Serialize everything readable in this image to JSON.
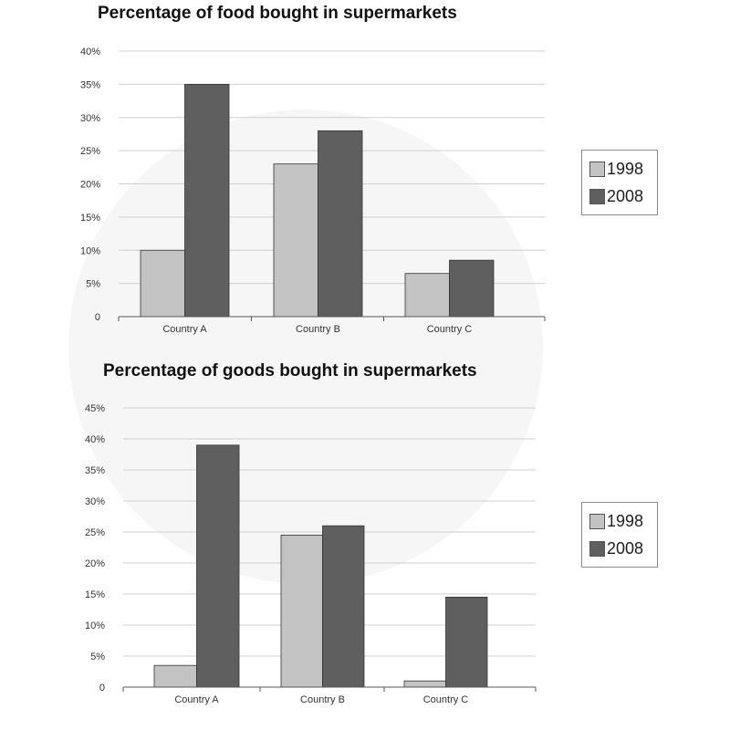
{
  "colors": {
    "series_1998": "#c3c3c3",
    "series_2008": "#5f5f5f",
    "grid": "#cfcfcf",
    "axis": "#555555",
    "text": "#333333"
  },
  "chart_data": [
    {
      "type": "bar",
      "title": "Percentage of food bought in supermarkets",
      "categories": [
        "Country A",
        "Country B",
        "Country C"
      ],
      "series": [
        {
          "name": "1998",
          "values": [
            10,
            23,
            6.5
          ]
        },
        {
          "name": "2008",
          "values": [
            35,
            28,
            8.5
          ]
        }
      ],
      "ylim": [
        0,
        40
      ],
      "yticks": [
        0,
        5,
        10,
        15,
        20,
        25,
        30,
        35,
        40
      ],
      "ytick_labels": [
        "0",
        "5%",
        "10%",
        "15%",
        "20%",
        "25%",
        "30%",
        "35%",
        "40%"
      ],
      "grid": true,
      "legend": "right"
    },
    {
      "type": "bar",
      "title": "Percentage of goods bought in supermarkets",
      "categories": [
        "Country A",
        "Country B",
        "Country C"
      ],
      "series": [
        {
          "name": "1998",
          "values": [
            3.5,
            24.5,
            1
          ]
        },
        {
          "name": "2008",
          "values": [
            39,
            26,
            14.5
          ]
        }
      ],
      "ylim": [
        0,
        45
      ],
      "yticks": [
        0,
        5,
        10,
        15,
        20,
        25,
        30,
        35,
        40,
        45
      ],
      "ytick_labels": [
        "0",
        "5%",
        "10%",
        "15%",
        "20%",
        "25%",
        "30%",
        "35%",
        "40%",
        "45%"
      ],
      "grid": true,
      "legend": "right"
    }
  ]
}
